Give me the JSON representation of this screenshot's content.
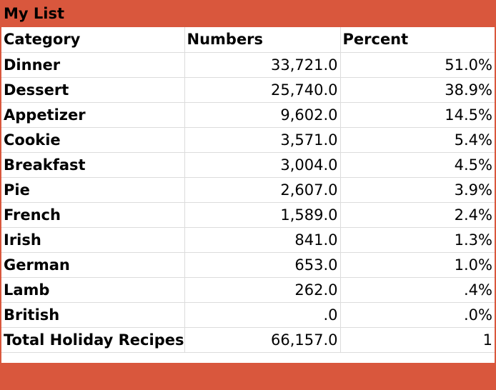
{
  "sheet": {
    "title": "My List",
    "headers": {
      "category": "Category",
      "numbers": "Numbers",
      "percent": "Percent"
    },
    "rows": [
      {
        "category": "Dinner",
        "numbers": "33,721.0",
        "percent": "51.0%"
      },
      {
        "category": "Dessert",
        "numbers": "25,740.0",
        "percent": "38.9%"
      },
      {
        "category": "Appetizer",
        "numbers": "9,602.0",
        "percent": "14.5%"
      },
      {
        "category": "Cookie",
        "numbers": "3,571.0",
        "percent": "5.4%"
      },
      {
        "category": "Breakfast",
        "numbers": "3,004.0",
        "percent": "4.5%"
      },
      {
        "category": "Pie",
        "numbers": "2,607.0",
        "percent": "3.9%"
      },
      {
        "category": "French",
        "numbers": "1,589.0",
        "percent": "2.4%"
      },
      {
        "category": "Irish",
        "numbers": "841.0",
        "percent": "1.3%"
      },
      {
        "category": "German",
        "numbers": "653.0",
        "percent": "1.0%"
      },
      {
        "category": "Lamb",
        "numbers": "262.0",
        "percent": ".4%"
      },
      {
        "category": "British",
        "numbers": ".0",
        "percent": ".0%"
      }
    ],
    "total": {
      "category": "Total Holiday Recipes",
      "numbers": "66,157.0",
      "percent": "1"
    }
  },
  "colors": {
    "accent": "#d9573d",
    "gridline": "#dcdcdc"
  }
}
